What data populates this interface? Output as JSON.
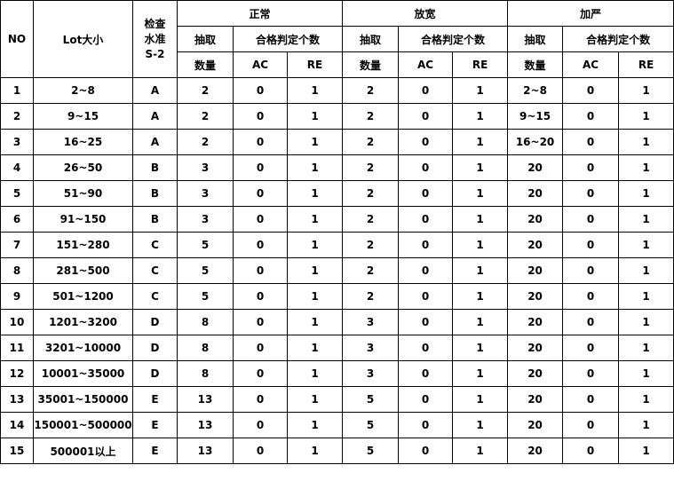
{
  "header": {
    "no": "NO",
    "lot": "Lot大小",
    "level": [
      "检查",
      "水准",
      "S-2"
    ],
    "groups": [
      {
        "title": "正常",
        "sample": "抽取",
        "qty": "数量",
        "judge": "合格判定个数",
        "ac": "AC",
        "re": "RE"
      },
      {
        "title": "放宽",
        "sample": "抽取",
        "qty": "数量",
        "judge": "合格判定个数",
        "ac": "AC",
        "re": "RE"
      },
      {
        "title": "加严",
        "sample": "抽取",
        "qty": "数量",
        "judge": "合格判定个数",
        "ac": "AC",
        "re": "RE"
      }
    ]
  },
  "table": {
    "rows": [
      [
        1,
        "2~8",
        "A",
        2,
        0,
        1,
        2,
        0,
        1,
        "2~8",
        0,
        1
      ],
      [
        2,
        "9~15",
        "A",
        2,
        0,
        1,
        2,
        0,
        1,
        "9~15",
        0,
        1
      ],
      [
        3,
        "16~25",
        "A",
        2,
        0,
        1,
        2,
        0,
        1,
        "16~20",
        0,
        1
      ],
      [
        4,
        "26~50",
        "B",
        3,
        0,
        1,
        2,
        0,
        1,
        20,
        0,
        1
      ],
      [
        5,
        "51~90",
        "B",
        3,
        0,
        1,
        2,
        0,
        1,
        20,
        0,
        1
      ],
      [
        6,
        "91~150",
        "B",
        3,
        0,
        1,
        2,
        0,
        1,
        20,
        0,
        1
      ],
      [
        7,
        "151~280",
        "C",
        5,
        0,
        1,
        2,
        0,
        1,
        20,
        0,
        1
      ],
      [
        8,
        "281~500",
        "C",
        5,
        0,
        1,
        2,
        0,
        1,
        20,
        0,
        1
      ],
      [
        9,
        "501~1200",
        "C",
        5,
        0,
        1,
        2,
        0,
        1,
        20,
        0,
        1
      ],
      [
        10,
        "1201~3200",
        "D",
        8,
        0,
        1,
        3,
        0,
        1,
        20,
        0,
        1
      ],
      [
        11,
        "3201~10000",
        "D",
        8,
        0,
        1,
        3,
        0,
        1,
        20,
        0,
        1
      ],
      [
        12,
        "10001~35000",
        "D",
        8,
        0,
        1,
        3,
        0,
        1,
        20,
        0,
        1
      ],
      [
        13,
        "35001~150000",
        "E",
        13,
        0,
        1,
        5,
        0,
        1,
        20,
        0,
        1
      ],
      [
        14,
        "150001~500000",
        "E",
        13,
        0,
        1,
        5,
        0,
        1,
        20,
        0,
        1
      ],
      [
        15,
        "500001以上",
        "E",
        13,
        0,
        1,
        5,
        0,
        1,
        20,
        0,
        1
      ]
    ]
  }
}
